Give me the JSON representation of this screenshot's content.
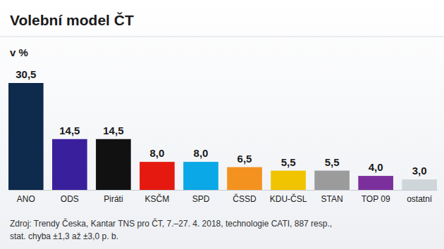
{
  "chart_data": {
    "type": "bar",
    "title": "Volební model ČT",
    "subtitle": "v %",
    "categories": [
      "ANO",
      "ODS",
      "Piráti",
      "KSČM",
      "SPD",
      "ČSSD",
      "KDU-ČSL",
      "STAN",
      "TOP 09",
      "ostatní"
    ],
    "values": [
      30.5,
      14.5,
      14.5,
      8.0,
      8.0,
      6.5,
      5.5,
      5.5,
      4.0,
      3.0
    ],
    "value_labels": [
      "30,5",
      "14,5",
      "14,5",
      "8,0",
      "8,0",
      "6,5",
      "5,5",
      "5,5",
      "4,0",
      "3,0"
    ],
    "colors": [
      "#0e2a4c",
      "#3a1f9c",
      "#111111",
      "#e5190f",
      "#0aa8e6",
      "#f4921f",
      "#f0c400",
      "#9b9b9b",
      "#7b2f9c",
      "#cfd6da"
    ],
    "ylim": [
      0,
      30.5
    ],
    "data_labels": true,
    "tick_labels": "x",
    "grid": false,
    "notes": [
      "Zdroj: Trendy Česka, Kantar TNS pro ČT, 7.–27. 4. 2018, technologie CATI, 887 resp.,",
      "stat. chyba ±1,3 až ±3,0 p. b."
    ]
  }
}
